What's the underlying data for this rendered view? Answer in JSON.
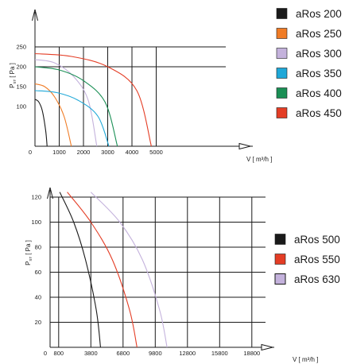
{
  "chart_data": [
    {
      "type": "line",
      "ylabel_main": "P",
      "ylabel_sub": "ST",
      "ylabel_unit": "[ Pa ]",
      "xlabel": "V [ m³/h ]",
      "x_ticks": [
        {
          "value": 0,
          "label": "0"
        },
        {
          "value": 1000,
          "label": "1000"
        },
        {
          "value": 2000,
          "label": "2000"
        },
        {
          "value": 3000,
          "label": "3000"
        },
        {
          "value": 4000,
          "label": "4000"
        },
        {
          "value": 5000,
          "label": "5000"
        }
      ],
      "y_ticks": [
        {
          "value": 100,
          "label": "100"
        },
        {
          "value": 150,
          "label": "150"
        },
        {
          "value": 200,
          "label": "200"
        },
        {
          "value": 250,
          "label": "250"
        }
      ],
      "xlim": [
        0,
        6400
      ],
      "ylim": [
        0,
        300
      ],
      "grid": true,
      "legend_position": "right",
      "series": [
        {
          "name": "aRos 200",
          "color": "#1a1a1a",
          "legend_style": "filled",
          "x": [
            0,
            150,
            300,
            440,
            500
          ],
          "y": [
            118,
            112,
            90,
            40,
            0
          ]
        },
        {
          "name": "aRos 250",
          "color": "#f07c26",
          "legend_style": "filled",
          "x": [
            0,
            400,
            800,
            1200,
            1500
          ],
          "y": [
            157,
            150,
            125,
            75,
            0
          ]
        },
        {
          "name": "aRos 300",
          "color": "#c4b2dc",
          "legend_style": "filled",
          "x": [
            0,
            800,
            1600,
            2200,
            2550
          ],
          "y": [
            218,
            210,
            175,
            115,
            0
          ]
        },
        {
          "name": "aRos 350",
          "color": "#1fa8d8",
          "legend_style": "filled",
          "x": [
            0,
            900,
            1800,
            2600,
            3050
          ],
          "y": [
            140,
            135,
            115,
            75,
            0
          ]
        },
        {
          "name": "aRos 400",
          "color": "#1a8f55",
          "legend_style": "filled",
          "x": [
            0,
            1000,
            2000,
            2900,
            3400
          ],
          "y": [
            200,
            192,
            165,
            110,
            0
          ]
        },
        {
          "name": "aRos 450",
          "color": "#e43d25",
          "legend_style": "filled",
          "x": [
            0,
            1500,
            3000,
            4200,
            4800
          ],
          "y": [
            233,
            226,
            200,
            140,
            0
          ]
        }
      ]
    },
    {
      "type": "line",
      "ylabel_main": "P",
      "ylabel_sub": "ST",
      "ylabel_unit": "[ Pa ]",
      "xlabel": "V [ m³/h ]",
      "x_ticks": [
        {
          "value": 0,
          "label": "0"
        },
        {
          "value": 800,
          "label": "800"
        },
        {
          "value": 3800,
          "label": "3800"
        },
        {
          "value": 6800,
          "label": "6800"
        },
        {
          "value": 9800,
          "label": "9800"
        },
        {
          "value": 12800,
          "label": "12800"
        },
        {
          "value": 15800,
          "label": "15800"
        },
        {
          "value": 18800,
          "label": "18800"
        }
      ],
      "y_ticks": [
        {
          "value": 20,
          "label": "20"
        },
        {
          "value": 40,
          "label": "40"
        },
        {
          "value": 60,
          "label": "60"
        },
        {
          "value": 80,
          "label": "80"
        },
        {
          "value": 100,
          "label": "100"
        },
        {
          "value": 120,
          "label": "120"
        }
      ],
      "xlim": [
        -2200,
        20800
      ],
      "ylim": [
        0,
        140
      ],
      "grid": true,
      "legend_position": "right",
      "series": [
        {
          "name": "aRos 500",
          "color": "#1a1a1a",
          "legend_style": "filled",
          "x": [
            900,
            2200,
            3300,
            4300,
            4700
          ],
          "y": [
            124,
            100,
            70,
            30,
            0
          ]
        },
        {
          "name": "aRos 550",
          "color": "#e43d25",
          "legend_style": "filled",
          "x": [
            1600,
            3800,
            5800,
            7400,
            8100
          ],
          "y": [
            124,
            100,
            70,
            30,
            0
          ]
        },
        {
          "name": "aRos 630",
          "color": "#c4b2dc",
          "legend_style": "outline",
          "x": [
            3800,
            6500,
            8600,
            10200,
            10900
          ],
          "y": [
            124,
            100,
            70,
            30,
            0
          ]
        }
      ]
    }
  ]
}
